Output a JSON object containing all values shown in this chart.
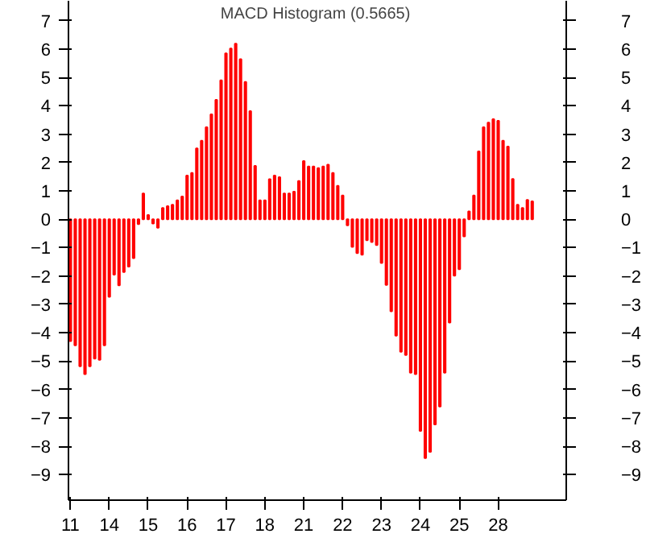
{
  "chart_data": {
    "type": "bar",
    "title": "MACD Histogram (0.5665)",
    "categories": [
      "11",
      null,
      null,
      null,
      null,
      null,
      null,
      null,
      "14",
      null,
      null,
      null,
      null,
      null,
      null,
      null,
      "15",
      null,
      null,
      null,
      null,
      null,
      null,
      null,
      "16",
      null,
      null,
      null,
      null,
      null,
      null,
      null,
      "17",
      null,
      null,
      null,
      null,
      null,
      null,
      null,
      "18",
      null,
      null,
      null,
      null,
      null,
      null,
      null,
      "21",
      null,
      null,
      null,
      null,
      null,
      null,
      null,
      "22",
      null,
      null,
      null,
      null,
      null,
      null,
      null,
      "23",
      null,
      null,
      null,
      null,
      null,
      null,
      null,
      "24",
      null,
      null,
      null,
      null,
      null,
      null,
      null,
      "25",
      null,
      null,
      null,
      null,
      null,
      null,
      null,
      "28",
      null,
      null,
      null,
      null,
      null,
      null,
      null
    ],
    "values": [
      -4.29,
      -4.44,
      -5.18,
      -5.46,
      -5.18,
      -4.91,
      -4.95,
      -4.44,
      -2.73,
      -1.95,
      -2.33,
      -1.86,
      -1.67,
      -1.37,
      -0.17,
      0.91,
      0.15,
      -0.15,
      -0.3,
      0.4,
      0.46,
      0.51,
      0.67,
      0.8,
      1.54,
      1.63,
      2.5,
      2.77,
      3.24,
      3.7,
      4.21,
      4.9,
      5.85,
      6.02,
      6.19,
      5.64,
      4.84,
      3.81,
      1.88,
      0.67,
      0.67,
      1.41,
      1.54,
      1.48,
      0.91,
      0.91,
      0.97,
      1.35,
      2.05,
      1.86,
      1.86,
      1.8,
      1.86,
      1.92,
      1.63,
      1.18,
      0.84,
      -0.21,
      -0.97,
      -1.19,
      -1.25,
      -0.74,
      -0.8,
      -0.91,
      -1.54,
      -2.31,
      -3.24,
      -4.1,
      -4.67,
      -4.78,
      -5.41,
      -5.46,
      -7.46,
      -8.42,
      -8.2,
      -7.23,
      -6.6,
      -5.41,
      -3.64,
      -1.99,
      -1.76,
      -0.6,
      0.28,
      0.84,
      2.39,
      3.24,
      3.41,
      3.53,
      3.47,
      2.77,
      2.56,
      1.42,
      0.51,
      0.4,
      0.68,
      0.63
    ],
    "color": "#ff0000",
    "ylim": [
      -9.9,
      7.7
    ],
    "yticks": [
      -9,
      -8,
      -7,
      -6,
      -5,
      -4,
      -3,
      -2,
      -1,
      0,
      1,
      2,
      3,
      4,
      5,
      6,
      7
    ],
    "y2lim": [
      -9.9,
      7.7
    ],
    "y2ticks": [
      -9,
      -8,
      -7,
      -6,
      -5,
      -4,
      -3,
      -2,
      -1,
      0,
      1,
      2,
      3,
      4,
      5,
      6,
      7
    ],
    "grid": false
  }
}
